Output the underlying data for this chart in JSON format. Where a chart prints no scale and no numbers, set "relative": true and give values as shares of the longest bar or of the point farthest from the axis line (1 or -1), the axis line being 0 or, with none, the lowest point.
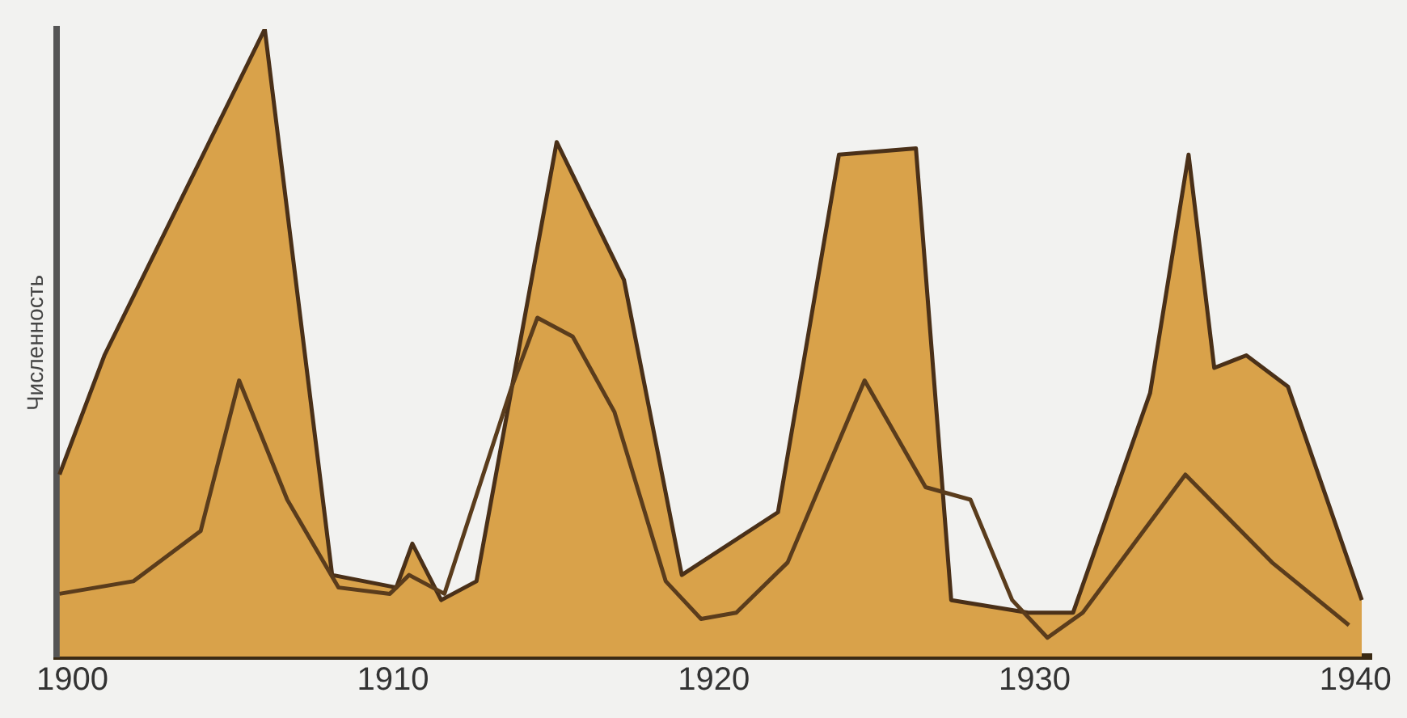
{
  "chart_data": {
    "type": "area",
    "relative": true,
    "ylabel": "Численность",
    "xlim": [
      1899.5,
      1940.5
    ],
    "xticks": [
      1900,
      1910,
      1920,
      1930,
      1940
    ],
    "grid": false,
    "legend": false,
    "marker": "none",
    "series": [
      {
        "color": "#d9a24a",
        "x": [
          1899.6,
          1901.0,
          1906.0,
          1908.1,
          1909.1,
          1910.1,
          1910.6,
          1911.5,
          1912.6,
          1915.1,
          1917.2,
          1919.0,
          1922.0,
          1923.9,
          1926.3,
          1927.4,
          1929.8,
          1931.2,
          1933.6,
          1934.8,
          1935.6,
          1936.6,
          1937.9,
          1940.2
        ],
        "values": [
          0.29,
          0.48,
          1.0,
          0.13,
          0.12,
          0.11,
          0.18,
          0.09,
          0.12,
          0.82,
          0.6,
          0.13,
          0.23,
          0.8,
          0.81,
          0.09,
          0.07,
          0.07,
          0.42,
          0.8,
          0.46,
          0.48,
          0.43,
          0.09
        ]
      },
      {
        "type": "line",
        "color": "#5a3c1c",
        "x": [
          1899.6,
          1901.9,
          1904.0,
          1905.2,
          1906.7,
          1908.3,
          1909.9,
          1910.5,
          1911.6,
          1913.7,
          1914.5,
          1915.6,
          1916.9,
          1918.5,
          1919.6,
          1920.7,
          1922.3,
          1924.7,
          1926.6,
          1928.0,
          1929.3,
          1930.4,
          1931.5,
          1934.7,
          1937.4,
          1939.8
        ],
        "values": [
          0.1,
          0.12,
          0.2,
          0.44,
          0.25,
          0.11,
          0.1,
          0.13,
          0.1,
          0.43,
          0.54,
          0.51,
          0.39,
          0.12,
          0.06,
          0.07,
          0.15,
          0.44,
          0.27,
          0.25,
          0.09,
          0.03,
          0.07,
          0.29,
          0.15,
          0.05
        ]
      }
    ]
  }
}
